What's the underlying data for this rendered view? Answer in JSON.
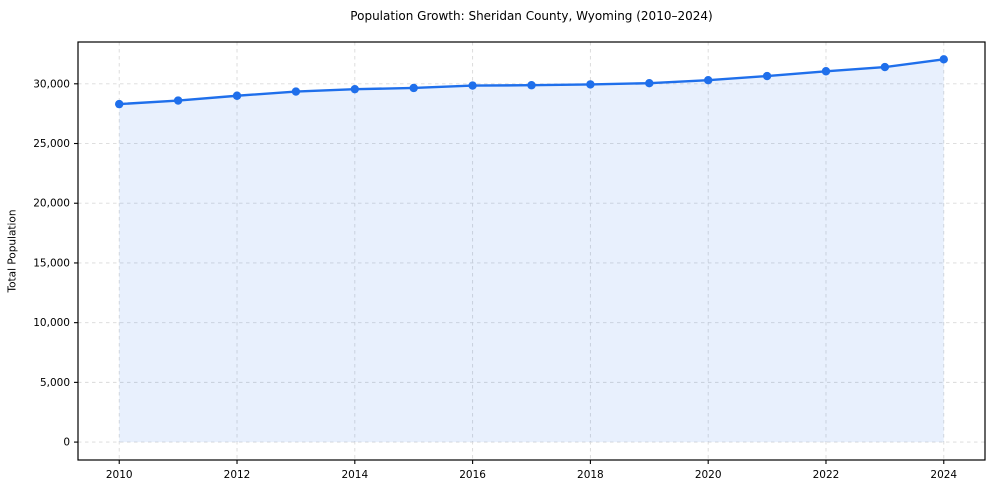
{
  "title": "Population Growth: Sheridan County, Wyoming (2010–2024)",
  "chart_data": {
    "type": "area",
    "title": "Population Growth: Sheridan County, Wyoming (2010–2024)",
    "xlabel": "",
    "ylabel": "Total Population",
    "x": [
      2010,
      2011,
      2012,
      2013,
      2014,
      2015,
      2016,
      2017,
      2018,
      2019,
      2020,
      2021,
      2022,
      2023,
      2024
    ],
    "series": [
      {
        "name": "Total Population",
        "values": [
          28300,
          28600,
          29000,
          29350,
          29550,
          29650,
          29850,
          29880,
          29950,
          30050,
          30300,
          30650,
          31050,
          31400,
          32050
        ]
      }
    ],
    "xticks": [
      2010,
      2012,
      2014,
      2016,
      2018,
      2020,
      2022,
      2024
    ],
    "xtick_labels": [
      "2010",
      "2012",
      "2014",
      "2016",
      "2018",
      "2020",
      "2022",
      "2024"
    ],
    "yticks": [
      0,
      5000,
      10000,
      15000,
      20000,
      25000,
      30000
    ],
    "ytick_labels": [
      "0",
      "5,000",
      "10,000",
      "15,000",
      "20,000",
      "25,000",
      "30,000"
    ],
    "xlim": [
      2009.3,
      2024.7
    ],
    "ylim": [
      -1500,
      33500
    ],
    "grid": true,
    "grid_style": "dashed",
    "legend": false,
    "marker": "circle",
    "colors": {
      "line": "#1f6feb",
      "fill_opacity": 0.1,
      "grid": "#d9d9d9",
      "axis": "#000000",
      "background": "#ffffff"
    }
  }
}
